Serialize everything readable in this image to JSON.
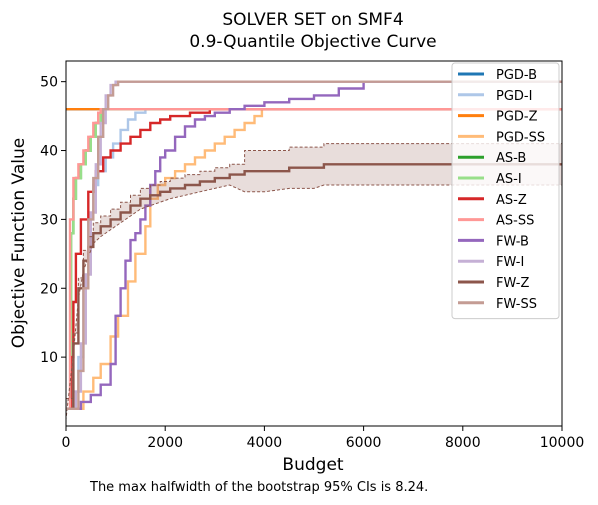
{
  "chart_data": {
    "type": "line",
    "title": "SOLVER SET on SMF4",
    "subtitle": "0.9-Quantile Objective Curve",
    "xlabel": "Budget",
    "ylabel": "Objective Function Value",
    "xlim": [
      0,
      10000
    ],
    "ylim": [
      0,
      53
    ],
    "x_ticks": [
      0,
      2000,
      4000,
      6000,
      8000,
      10000
    ],
    "y_ticks": [
      10,
      20,
      30,
      40,
      50
    ],
    "grid": false,
    "legend_position": "top-right",
    "footnote": "The max halfwidth of the bootstrap 95% CIs is 8.24.",
    "series": [
      {
        "name": "PGD-B",
        "color": "#1f77b4",
        "x": [
          0,
          10000
        ],
        "y": [
          46,
          46
        ]
      },
      {
        "name": "PGD-I",
        "color": "#aec7e8",
        "x": [
          0,
          150,
          250,
          350,
          450,
          550,
          650,
          800,
          950,
          1100,
          1250,
          1400,
          1600,
          10000
        ],
        "y": [
          2.5,
          5,
          10,
          20,
          30,
          35,
          37,
          39,
          41,
          43,
          44.5,
          45.5,
          46,
          46
        ]
      },
      {
        "name": "PGD-Z",
        "color": "#ff7f0e",
        "x": [
          0,
          10000
        ],
        "y": [
          46,
          46
        ]
      },
      {
        "name": "PGD-SS",
        "color": "#ffbb78",
        "x": [
          0,
          350,
          550,
          700,
          900,
          1050,
          1250,
          1400,
          1600,
          1700,
          1850,
          2000,
          2200,
          2400,
          2600,
          2800,
          3000,
          3200,
          3400,
          3600,
          3800,
          3950,
          10000
        ],
        "y": [
          2.5,
          5,
          7,
          9,
          13,
          16,
          21,
          25,
          29,
          33,
          35,
          36,
          37,
          38,
          39,
          40,
          41,
          42,
          43,
          44,
          45,
          46,
          46
        ]
      },
      {
        "name": "AS-B",
        "color": "#2ca02c",
        "x": [
          0,
          100,
          150,
          200,
          300,
          400,
          500,
          600,
          700,
          10000
        ],
        "y": [
          2.5,
          28,
          33,
          36,
          38,
          40,
          42,
          44,
          46,
          46
        ]
      },
      {
        "name": "AS-I",
        "color": "#98df8a",
        "x": [
          0,
          100,
          150,
          200,
          300,
          400,
          500,
          600,
          700,
          10000
        ],
        "y": [
          2.5,
          28,
          33,
          36,
          38,
          40,
          42,
          44,
          46,
          46
        ]
      },
      {
        "name": "AS-Z",
        "color": "#d62728",
        "x": [
          0,
          100,
          150,
          200,
          300,
          450,
          600,
          750,
          900,
          1100,
          1300,
          1500,
          1700,
          1900,
          2100,
          2300,
          2500,
          2700,
          2900,
          3100,
          3300,
          3500,
          3700,
          10000
        ],
        "y": [
          2.5,
          10,
          18,
          25,
          30,
          34,
          37,
          39,
          40,
          41,
          42,
          43,
          44,
          44.5,
          45,
          45,
          45.5,
          45.5,
          46,
          46,
          46,
          46,
          46,
          46
        ]
      },
      {
        "name": "AS-SS",
        "color": "#ff9896",
        "x": [
          0,
          80,
          150,
          250,
          350,
          450,
          550,
          650,
          700,
          10000
        ],
        "y": [
          2.5,
          30,
          36,
          38,
          40,
          42,
          44,
          45.5,
          46,
          46
        ]
      },
      {
        "name": "FW-B",
        "color": "#9467bd",
        "x": [
          0,
          300,
          500,
          700,
          900,
          1000,
          1100,
          1200,
          1300,
          1400,
          1500,
          1600,
          1700,
          1800,
          1900,
          2000,
          2200,
          2400,
          2600,
          2800,
          3000,
          3300,
          3600,
          4000,
          4500,
          5000,
          5500,
          6000,
          10000
        ],
        "y": [
          2.5,
          3.5,
          4.5,
          6,
          9,
          16,
          20,
          24,
          27,
          28,
          30,
          32,
          35,
          37,
          39,
          40,
          42,
          43.5,
          44.5,
          45,
          45.5,
          46,
          46.5,
          47,
          47.5,
          48,
          49,
          50,
          50
        ]
      },
      {
        "name": "FW-I",
        "color": "#c5b0d5",
        "x": [
          0,
          200,
          300,
          400,
          500,
          600,
          700,
          800,
          900,
          1000,
          10000
        ],
        "y": [
          2.5,
          5,
          12,
          22,
          31,
          38,
          44,
          48,
          49.5,
          50,
          50
        ]
      },
      {
        "name": "FW-Z",
        "color": "#8c564b",
        "x": [
          0,
          150,
          250,
          350,
          450,
          550,
          700,
          900,
          1100,
          1300,
          1500,
          1700,
          1900,
          2100,
          2400,
          2700,
          3000,
          3300,
          3600,
          4000,
          4500,
          5000,
          5200,
          10000
        ],
        "y": [
          2.5,
          12,
          20,
          24,
          26,
          28,
          29,
          30,
          31,
          32,
          33,
          33.5,
          34,
          34.5,
          35,
          35.5,
          36,
          36.5,
          37,
          37,
          37.5,
          37.5,
          38,
          38
        ]
      },
      {
        "name": "FW-SS",
        "color": "#c49c94",
        "x": [
          0,
          250,
          350,
          450,
          550,
          650,
          750,
          850,
          950,
          1050,
          10000
        ],
        "y": [
          2.5,
          8,
          20,
          30,
          36,
          42,
          46,
          48,
          49.5,
          50,
          50
        ]
      }
    ]
  }
}
